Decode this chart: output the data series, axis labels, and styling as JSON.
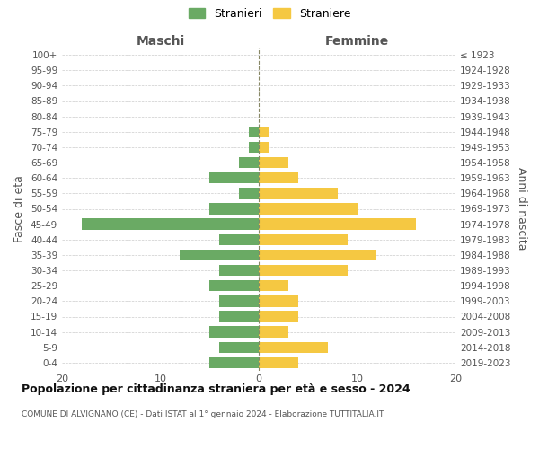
{
  "age_groups": [
    "0-4",
    "5-9",
    "10-14",
    "15-19",
    "20-24",
    "25-29",
    "30-34",
    "35-39",
    "40-44",
    "45-49",
    "50-54",
    "55-59",
    "60-64",
    "65-69",
    "70-74",
    "75-79",
    "80-84",
    "85-89",
    "90-94",
    "95-99",
    "100+"
  ],
  "birth_years": [
    "2019-2023",
    "2014-2018",
    "2009-2013",
    "2004-2008",
    "1999-2003",
    "1994-1998",
    "1989-1993",
    "1984-1988",
    "1979-1983",
    "1974-1978",
    "1969-1973",
    "1964-1968",
    "1959-1963",
    "1954-1958",
    "1949-1953",
    "1944-1948",
    "1939-1943",
    "1934-1938",
    "1929-1933",
    "1924-1928",
    "≤ 1923"
  ],
  "maschi": [
    5,
    4,
    5,
    4,
    4,
    5,
    4,
    8,
    4,
    18,
    5,
    2,
    5,
    2,
    1,
    1,
    0,
    0,
    0,
    0,
    0
  ],
  "femmine": [
    4,
    7,
    3,
    4,
    4,
    3,
    9,
    12,
    9,
    16,
    10,
    8,
    4,
    3,
    1,
    1,
    0,
    0,
    0,
    0,
    0
  ],
  "male_color": "#6aaa64",
  "female_color": "#f5c842",
  "background_color": "#ffffff",
  "grid_color": "#cccccc",
  "title": "Popolazione per cittadinanza straniera per età e sesso - 2024",
  "subtitle": "COMUNE DI ALVIGNANO (CE) - Dati ISTAT al 1° gennaio 2024 - Elaborazione TUTTITALIA.IT",
  "ylabel_left": "Fasce di età",
  "ylabel_right": "Anni di nascita",
  "xlabel_left": "Maschi",
  "xlabel_top_right": "Femmine",
  "legend_male": "Stranieri",
  "legend_female": "Straniere",
  "xlim": 20
}
